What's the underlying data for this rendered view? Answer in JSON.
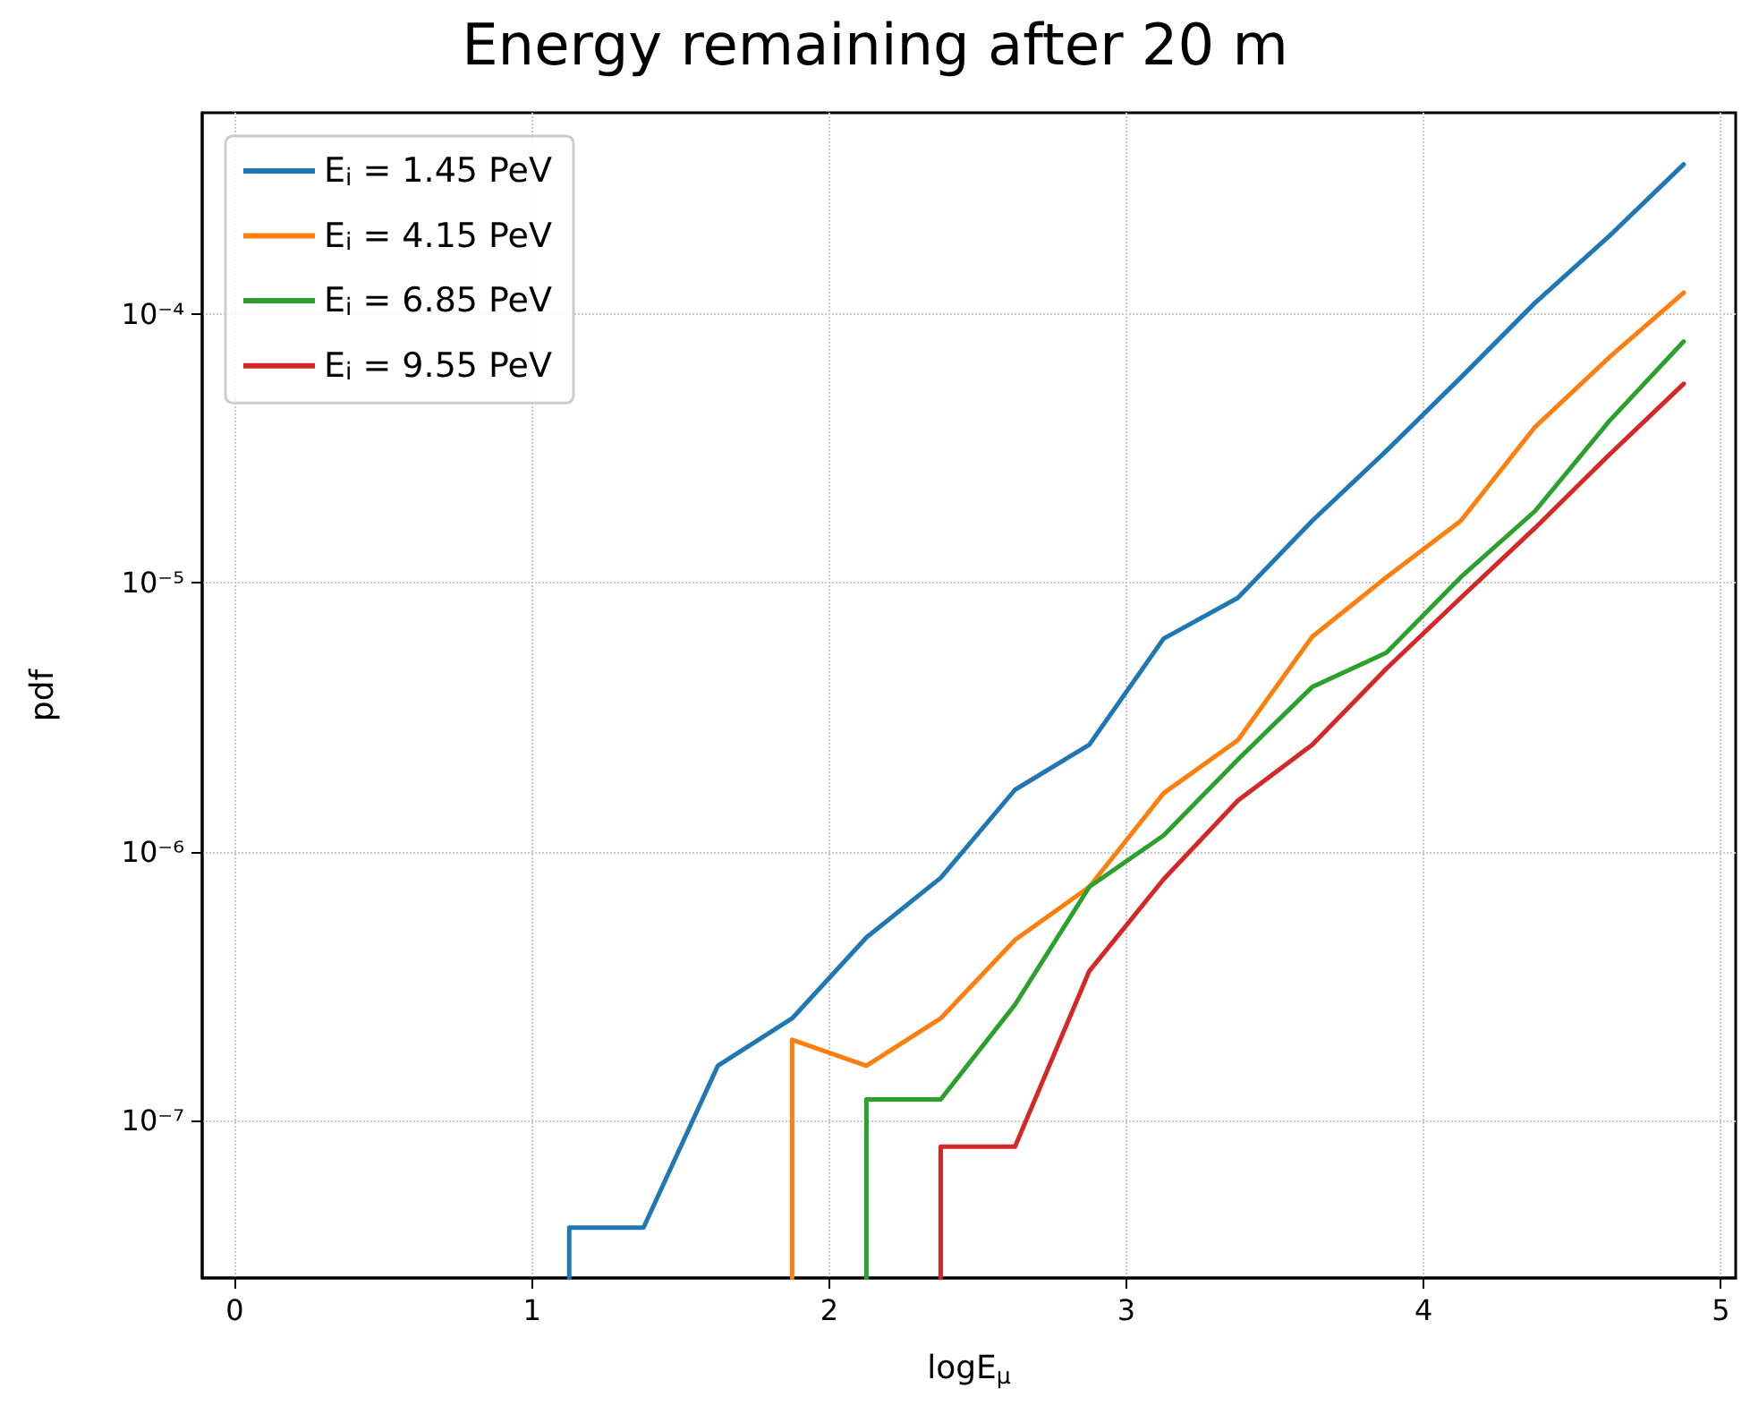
{
  "chart_data": {
    "type": "line",
    "title": "Energy remaining after 20 m",
    "xlabel": "logE$_{μ}$",
    "ylabel": "pdf",
    "log": "y",
    "grid": true,
    "legend": "top left",
    "marker": "none",
    "line_style": "solid",
    "xlim": [
      -0.11,
      5.05
    ],
    "xticks": [
      0,
      1,
      2,
      3,
      4,
      5
    ],
    "ylim": [
      2.6e-08,
      0.00056
    ],
    "yticks": [
      {
        "value": 1e-07,
        "label": "10⁻⁷"
      },
      {
        "value": 1e-06,
        "label": "10⁻⁶"
      },
      {
        "value": 1e-05,
        "label": "10⁻⁵"
      },
      {
        "value": 0.0001,
        "label": "10⁻⁴"
      }
    ],
    "series": [
      {
        "name": "E$_{i}$ = 1.45 PeV",
        "color": "#1f77b4",
        "x": [
          1.125,
          1.125,
          1.375,
          1.625,
          1.875,
          2.125,
          2.375,
          2.625,
          2.875,
          3.125,
          3.375,
          3.625,
          3.875,
          4.125,
          4.375,
          4.625,
          4.875
        ],
        "values": [
          2.6e-08,
          4e-08,
          4e-08,
          1.6e-07,
          2.4e-07,
          4.8e-07,
          8e-07,
          1.7e-06,
          2.5e-06,
          6.2e-06,
          8.8e-06,
          1.7e-05,
          3.1e-05,
          5.8e-05,
          0.00011,
          0.000195,
          0.00036
        ]
      },
      {
        "name": "E$_{i}$ = 4.15 PeV",
        "color": "#ff7f0e",
        "x": [
          1.875,
          1.875,
          2.125,
          2.375,
          2.625,
          2.875,
          3.125,
          3.375,
          3.625,
          3.875,
          4.125,
          4.375,
          4.625,
          4.875
        ],
        "values": [
          2.6e-08,
          2e-07,
          1.6e-07,
          2.4e-07,
          4.7e-07,
          7.4e-07,
          1.65e-06,
          2.6e-06,
          6.3e-06,
          1.05e-05,
          1.7e-05,
          3.8e-05,
          6.9e-05,
          0.00012
        ]
      },
      {
        "name": "E$_{i}$ = 6.85 PeV",
        "color": "#2ca02c",
        "x": [
          2.125,
          2.125,
          2.375,
          2.625,
          2.875,
          3.125,
          3.375,
          3.625,
          3.875,
          4.125,
          4.375,
          4.625,
          4.875
        ],
        "values": [
          2.6e-08,
          1.2e-07,
          1.2e-07,
          2.7e-07,
          7.4e-07,
          1.15e-06,
          2.2e-06,
          4.1e-06,
          5.5e-06,
          1.05e-05,
          1.85e-05,
          4e-05,
          7.9e-05
        ]
      },
      {
        "name": "E$_{i}$ = 9.55 PeV",
        "color": "#d62728",
        "x": [
          2.375,
          2.375,
          2.625,
          2.875,
          3.125,
          3.375,
          3.625,
          3.875,
          4.125,
          4.375,
          4.625,
          4.875
        ],
        "values": [
          2.6e-08,
          8e-08,
          8e-08,
          3.6e-07,
          7.9e-07,
          1.55e-06,
          2.5e-06,
          4.8e-06,
          8.8e-06,
          1.6e-05,
          3e-05,
          5.5e-05
        ]
      }
    ]
  }
}
